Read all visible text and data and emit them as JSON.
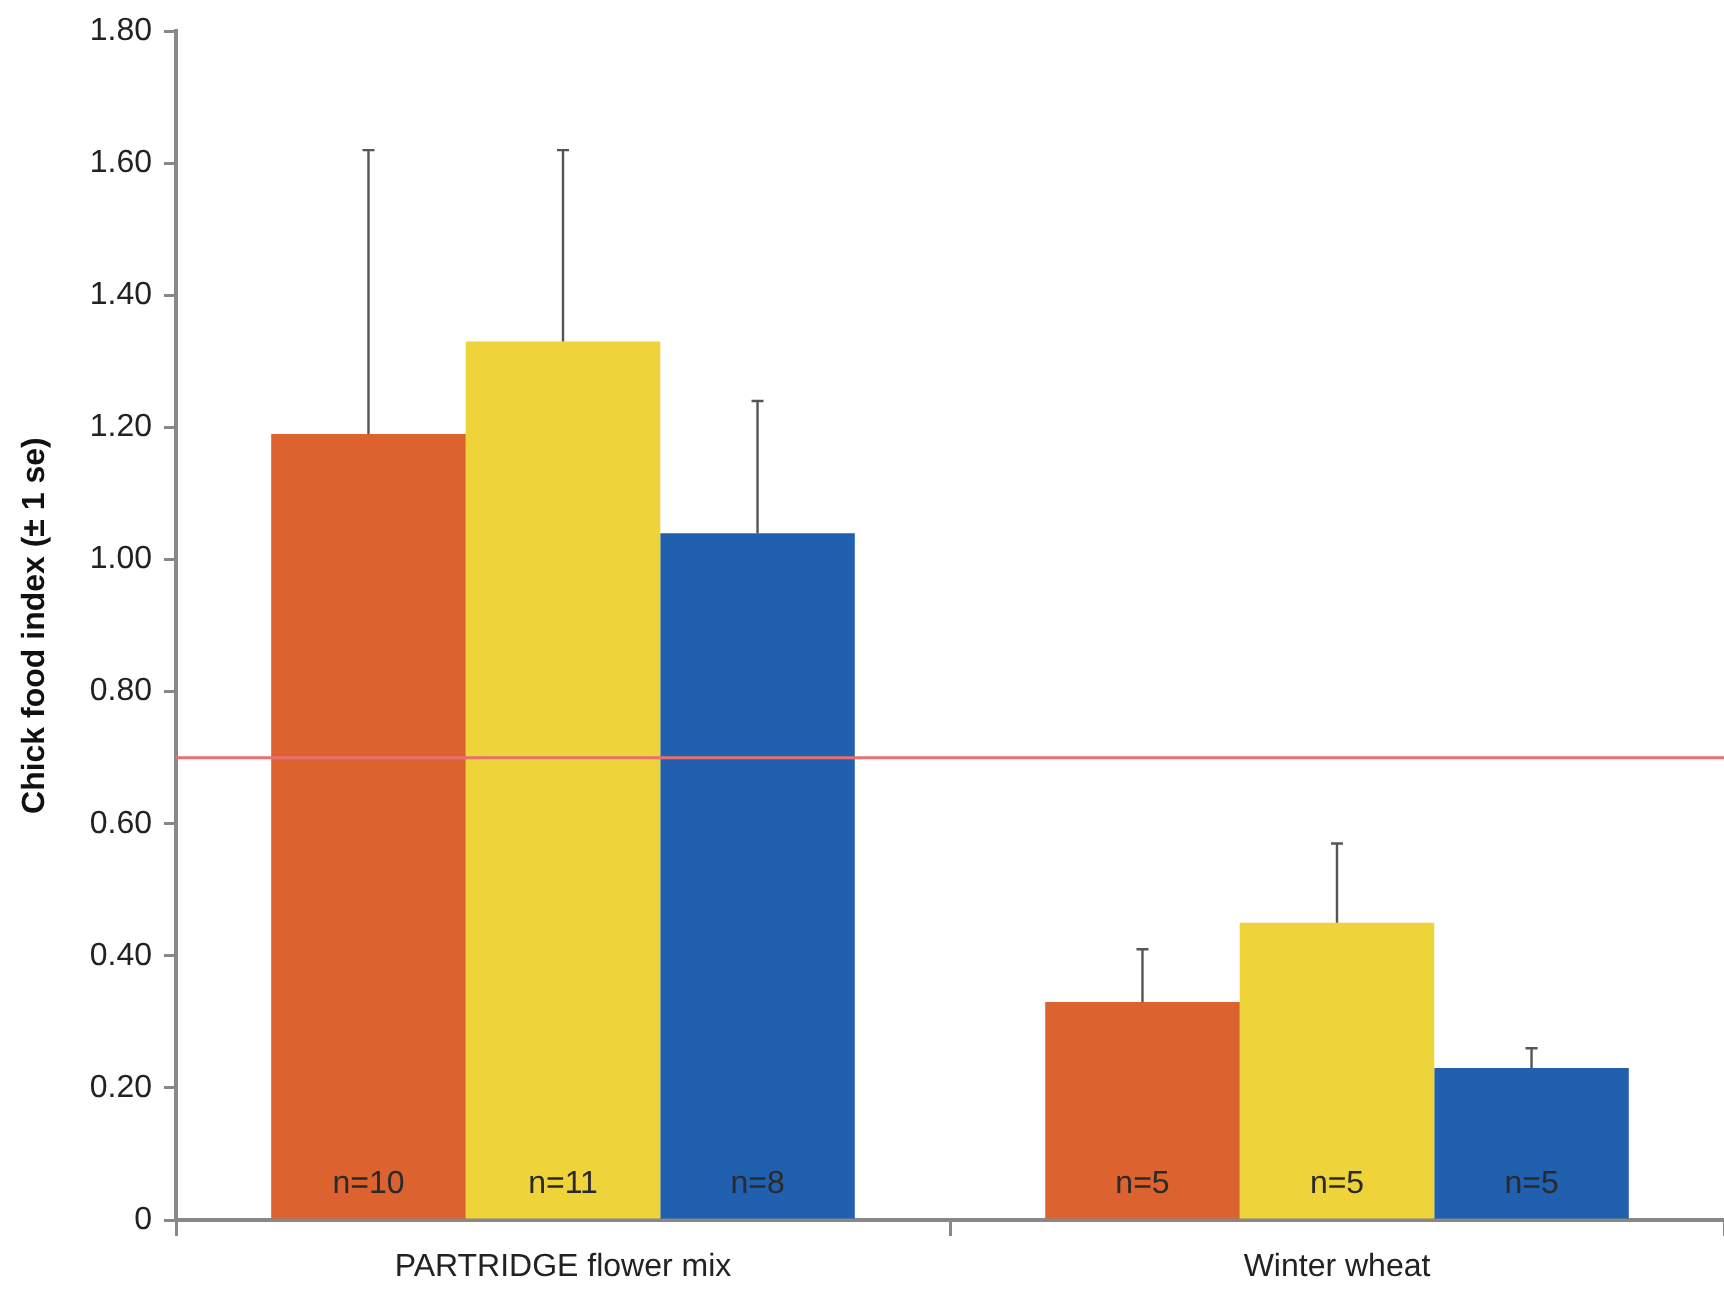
{
  "chart_data": {
    "type": "bar",
    "ylabel": "Chick food index (± 1 se)",
    "categories": [
      "PARTRIDGE flower mix",
      "Winter wheat"
    ],
    "series": [
      {
        "color": "#dc6330",
        "values": [
          1.19,
          0.33
        ],
        "errors": [
          [
            1.19,
            1.62
          ],
          [
            0.33,
            0.41
          ]
        ]
      },
      {
        "color": "#efd33a",
        "values": [
          1.33,
          0.45
        ],
        "errors": [
          [
            1.33,
            1.62
          ],
          [
            0.45,
            0.57
          ]
        ]
      },
      {
        "color": "#2160ae",
        "values": [
          1.04,
          0.23
        ],
        "errors": [
          [
            1.04,
            1.24
          ],
          [
            0.23,
            0.26
          ]
        ]
      }
    ],
    "ylim": [
      0,
      1.8
    ],
    "yticks": [
      0,
      {
        "value": 0.2,
        "label": "0.20"
      },
      {
        "value": 0.4,
        "label": "0.40"
      },
      {
        "value": 0.6,
        "label": "0.60"
      },
      {
        "value": 0.8,
        "label": "0.80"
      },
      {
        "value": 1,
        "label": "1.00"
      },
      {
        "value": 1.2,
        "label": "1.20"
      },
      {
        "value": 1.4,
        "label": "1.40"
      },
      {
        "value": 1.6,
        "label": "1.60"
      },
      {
        "value": 1.8,
        "label": "1.80"
      }
    ],
    "ref_lines": [
      {
        "axis": "y",
        "value": 0.7,
        "color": "#e8706f"
      }
    ],
    "annotations": [
      "n=10",
      "n=11",
      "n=8",
      "n=5",
      "n=5",
      "n=5"
    ]
  }
}
